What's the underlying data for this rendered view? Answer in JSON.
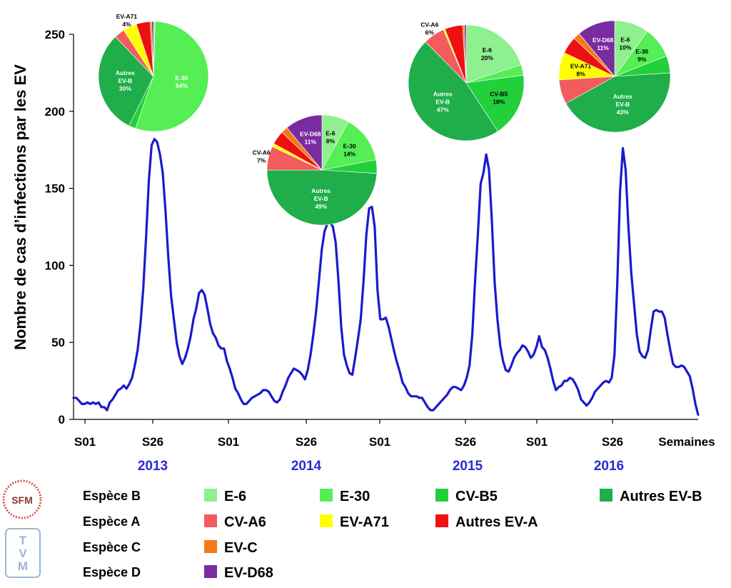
{
  "chart_data": {
    "type": "line",
    "ylabel": "Nombre de cas  d’infections par les EV",
    "xlabel": "Semaines",
    "ylim": [
      0,
      250
    ],
    "yticks": [
      0,
      50,
      100,
      150,
      200,
      250
    ],
    "xticks": [
      "S01",
      "S26",
      "S01",
      "S26",
      "S01",
      "S26",
      "S01",
      "S26"
    ],
    "years": [
      "2013",
      "2014",
      "2015",
      "2016"
    ],
    "grid": false,
    "series": [
      {
        "name": "Nombre de cas",
        "color": "#1a1acc",
        "values": [
          14,
          14,
          12,
          10,
          10,
          11,
          10,
          11,
          10,
          11,
          8,
          8,
          6,
          11,
          13,
          16,
          19,
          20,
          22,
          20,
          23,
          27,
          35,
          45,
          62,
          85,
          118,
          155,
          178,
          182,
          180,
          172,
          160,
          135,
          105,
          80,
          65,
          50,
          41,
          36,
          40,
          46,
          54,
          65,
          72,
          82,
          84,
          81,
          72,
          62,
          56,
          53,
          48,
          46,
          46,
          38,
          33,
          27,
          20,
          17,
          13,
          10,
          10,
          12,
          14,
          15,
          16,
          17,
          19,
          19,
          18,
          15,
          12,
          11,
          13,
          18,
          22,
          27,
          30,
          33,
          32,
          31,
          29,
          26,
          32,
          42,
          55,
          70,
          90,
          110,
          122,
          127,
          128,
          125,
          115,
          90,
          60,
          42,
          35,
          30,
          29,
          40,
          52,
          65,
          90,
          120,
          137,
          138,
          125,
          84,
          65,
          65,
          66,
          60,
          52,
          44,
          37,
          31,
          24,
          21,
          17,
          15,
          15,
          15,
          14,
          14,
          11,
          8,
          6,
          6,
          8,
          10,
          12,
          14,
          16,
          19,
          21,
          21,
          20,
          19,
          22,
          27,
          35,
          55,
          90,
          120,
          153,
          160,
          172,
          162,
          130,
          90,
          65,
          48,
          38,
          32,
          31,
          35,
          40,
          43,
          45,
          48,
          47,
          44,
          40,
          42,
          47,
          54,
          47,
          45,
          40,
          33,
          25,
          19,
          21,
          22,
          25,
          25,
          27,
          26,
          23,
          19,
          13,
          11,
          9,
          11,
          14,
          18,
          20,
          22,
          24,
          25,
          24,
          27,
          42,
          88,
          148,
          176,
          162,
          125,
          95,
          75,
          55,
          44,
          41,
          40,
          45,
          58,
          70,
          71,
          70,
          70,
          66,
          55,
          45,
          36,
          34,
          34,
          35,
          34,
          31,
          28,
          20,
          10,
          3
        ]
      }
    ],
    "pies": [
      {
        "year": "2013",
        "slices": [
          {
            "name": "E-6",
            "value": 0.5
          },
          {
            "name": "E-30",
            "value": 54,
            "label": [
              "E-30",
              "54%"
            ]
          },
          {
            "name": "CV-B5",
            "value": 2
          },
          {
            "name": "Autres EV-B",
            "value": 30,
            "label": [
              "Autres",
              "EV-B",
              "30%"
            ]
          },
          {
            "name": "CV-A6",
            "value": 3
          },
          {
            "name": "EV-A71",
            "value": 4,
            "label": [
              "EV-A71",
              "4%"
            ]
          },
          {
            "name": "Autres EV-A",
            "value": 4
          },
          {
            "name": "EV-C",
            "value": 0.5
          },
          {
            "name": "EV-D68",
            "value": 0.5
          }
        ]
      },
      {
        "year": "2014",
        "slices": [
          {
            "name": "E-6",
            "value": 8,
            "label": [
              "E-6",
              "8%"
            ]
          },
          {
            "name": "E-30",
            "value": 14,
            "label": [
              "E-30",
              "14%"
            ]
          },
          {
            "name": "CV-B5",
            "value": 4
          },
          {
            "name": "Autres EV-B",
            "value": 49,
            "label": [
              "Autres",
              "EV-B",
              "49%"
            ]
          },
          {
            "name": "CV-A6",
            "value": 7,
            "label": [
              "CV-A6",
              "7%"
            ]
          },
          {
            "name": "EV-A71",
            "value": 1
          },
          {
            "name": "Autres EV-A",
            "value": 4
          },
          {
            "name": "EV-C",
            "value": 2
          },
          {
            "name": "EV-D68",
            "value": 11,
            "label": [
              "EV-D68",
              "11%"
            ]
          }
        ]
      },
      {
        "year": "2015",
        "slices": [
          {
            "name": "E-6",
            "value": 20,
            "label": [
              "E-6",
              "20%"
            ]
          },
          {
            "name": "E-30",
            "value": 3
          },
          {
            "name": "CV-B5",
            "value": 18,
            "label": [
              "CV-B5",
              "18%"
            ]
          },
          {
            "name": "Autres EV-B",
            "value": 47,
            "label": [
              "Autres",
              "EV-B",
              "47%"
            ]
          },
          {
            "name": "CV-A6",
            "value": 6,
            "label": [
              "CV-A6",
              "6%"
            ]
          },
          {
            "name": "EV-A71",
            "value": 0.5
          },
          {
            "name": "Autres EV-A",
            "value": 5
          },
          {
            "name": "EV-C",
            "value": 0.5
          },
          {
            "name": "EV-D68",
            "value": 0.5
          }
        ]
      },
      {
        "year": "2016",
        "slices": [
          {
            "name": "E-6",
            "value": 10,
            "label": [
              "E-6",
              "10%"
            ]
          },
          {
            "name": "E-30",
            "value": 9,
            "label": [
              "E-30",
              "9%"
            ]
          },
          {
            "name": "CV-B5",
            "value": 5
          },
          {
            "name": "Autres EV-B",
            "value": 43,
            "label": [
              "Autres",
              "EV-B",
              "43%"
            ]
          },
          {
            "name": "CV-A6",
            "value": 7
          },
          {
            "name": "EV-A71",
            "value": 8,
            "label": [
              "EV-A71",
              "8%"
            ]
          },
          {
            "name": "Autres EV-A",
            "value": 5
          },
          {
            "name": "EV-C",
            "value": 2
          },
          {
            "name": "EV-D68",
            "value": 11,
            "label": [
              "EV-D68",
              "11%"
            ]
          }
        ]
      }
    ]
  },
  "legend": {
    "species": [
      "Espèce B",
      "Espèce A",
      "Espèce C",
      "Espèce D"
    ],
    "rows": [
      [
        {
          "name": "E-6",
          "color": "#8ef08e"
        },
        {
          "name": "E-30",
          "color": "#55ee55"
        },
        {
          "name": "CV-B5",
          "color": "#22d03c"
        },
        {
          "name": "Autres EV-B",
          "color": "#1fae4a"
        }
      ],
      [
        {
          "name": "CV-A6",
          "color": "#f25c5c"
        },
        {
          "name": "EV-A71",
          "color": "#ffff00"
        },
        {
          "name": "Autres EV-A",
          "color": "#ee1111"
        }
      ],
      [
        {
          "name": "EV-C",
          "color": "#f27a1a"
        }
      ],
      [
        {
          "name": "EV-D68",
          "color": "#7a2ba0"
        }
      ]
    ]
  },
  "logos": {
    "sfm": "SFM",
    "tvm": "TVM"
  }
}
